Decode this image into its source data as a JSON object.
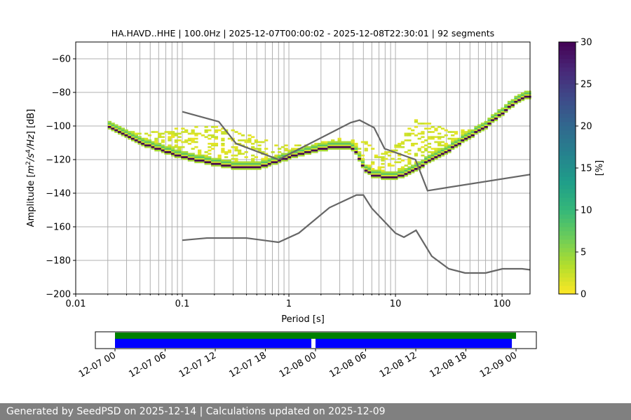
{
  "chart_data": {
    "type": "heatmap",
    "title": "HA.HAVD..HHE | 100.0Hz | 2025-12-07T00:00:02 - 2025-12-08T22:30:01 | 92 segments",
    "xlabel": "Period [s]",
    "ylabel": "Amplitude [m²/s⁴/Hz] [dB]",
    "xscale": "log",
    "xlim": [
      0.01,
      183
    ],
    "ylim": [
      -200,
      -50
    ],
    "xticks": [
      {
        "v": 0.01,
        "label": "0.01"
      },
      {
        "v": 0.1,
        "label": "0.1"
      },
      {
        "v": 1,
        "label": "1"
      },
      {
        "v": 10,
        "label": "10"
      },
      {
        "v": 100,
        "label": "100"
      }
    ],
    "yticks": [
      {
        "v": -60,
        "label": "−60"
      },
      {
        "v": -80,
        "label": "−80"
      },
      {
        "v": -100,
        "label": "−100"
      },
      {
        "v": -120,
        "label": "−120"
      },
      {
        "v": -140,
        "label": "−140"
      },
      {
        "v": -160,
        "label": "−160"
      },
      {
        "v": -180,
        "label": "−180"
      },
      {
        "v": -200,
        "label": "−200"
      }
    ],
    "grid": true,
    "colorbar": {
      "label": "[%]",
      "range": [
        0,
        30
      ],
      "ticks": [
        {
          "v": 0,
          "label": "0"
        },
        {
          "v": 5,
          "label": "5"
        },
        {
          "v": 10,
          "label": "10"
        },
        {
          "v": 15,
          "label": "15"
        },
        {
          "v": 20,
          "label": "20"
        },
        {
          "v": 25,
          "label": "25"
        },
        {
          "v": 30,
          "label": "30"
        }
      ]
    },
    "mode_curve": {
      "periods": [
        0.02,
        0.03,
        0.05,
        0.1,
        0.2,
        0.35,
        0.5,
        0.8,
        1.2,
        2,
        3,
        3.7,
        4.3,
        5,
        6,
        8,
        10,
        13,
        16,
        20,
        30,
        50,
        70,
        100,
        130,
        183
      ],
      "db": [
        -101,
        -107,
        -113,
        -119,
        -123,
        -125.5,
        -125,
        -121,
        -117,
        -114,
        -112.5,
        -113,
        -118,
        -127,
        -130,
        -131,
        -131,
        -128,
        -125,
        -121,
        -115,
        -106,
        -100,
        -92,
        -86,
        -82
      ]
    },
    "upper_spread": {
      "periods": [
        0.02,
        0.025,
        0.05,
        0.1,
        0.2,
        0.4,
        0.8,
        1.5,
        3,
        5,
        7,
        10,
        15,
        20,
        30,
        50,
        70,
        100,
        183
      ],
      "db": [
        -101,
        -104,
        -104,
        -102,
        -100,
        -106,
        -112,
        -112,
        -108,
        -110,
        -118,
        -112,
        -97,
        -98,
        -104,
        -103,
        -100,
        -92,
        -82
      ]
    },
    "nhnm": {
      "periods": [
        0.1,
        0.22,
        0.32,
        0.8,
        3.8,
        4.6,
        6.3,
        7.9,
        15.4,
        20,
        354.8
      ],
      "db": [
        -91.5,
        -97.41,
        -110.5,
        -120,
        -98,
        -96.5,
        -101,
        -113.5,
        -120,
        -138.5,
        -126
      ]
    },
    "nlnm": {
      "periods": [
        0.1,
        0.17,
        0.4,
        0.8,
        1.24,
        2.4,
        4.3,
        5,
        6,
        10,
        12,
        15.6,
        21.9,
        31.6,
        45,
        70,
        101,
        154,
        328
      ],
      "db": [
        -168,
        -166.7,
        -166.7,
        -169.2,
        -163.7,
        -148.6,
        -141.1,
        -141.1,
        -149,
        -163.8,
        -166.2,
        -162.1,
        -177.5,
        -185,
        -187.5,
        -187.5,
        -185,
        -185,
        -187.5
      ]
    },
    "coverage": {
      "xlim_hours": [
        -2.35,
        50.43
      ],
      "ticks": [
        {
          "h": 0,
          "label": "12-07 00"
        },
        {
          "h": 6,
          "label": "12-07 06"
        },
        {
          "h": 12,
          "label": "12-07 12"
        },
        {
          "h": 18,
          "label": "12-07 18"
        },
        {
          "h": 24,
          "label": "12-08 00"
        },
        {
          "h": 30,
          "label": "12-08 06"
        },
        {
          "h": 36,
          "label": "12-08 12"
        },
        {
          "h": 42,
          "label": "12-08 18"
        },
        {
          "h": 48,
          "label": "12-09 00"
        }
      ],
      "requested": [
        [
          0,
          48
        ]
      ],
      "processed": [
        [
          0,
          23.5
        ],
        [
          24,
          47.5
        ]
      ],
      "colors": {
        "requested": "#008000",
        "processed": "#0000ff"
      }
    }
  },
  "footer": "Generated by SeedPSD on 2025-12-14 | Calculations updated on 2025-12-09"
}
